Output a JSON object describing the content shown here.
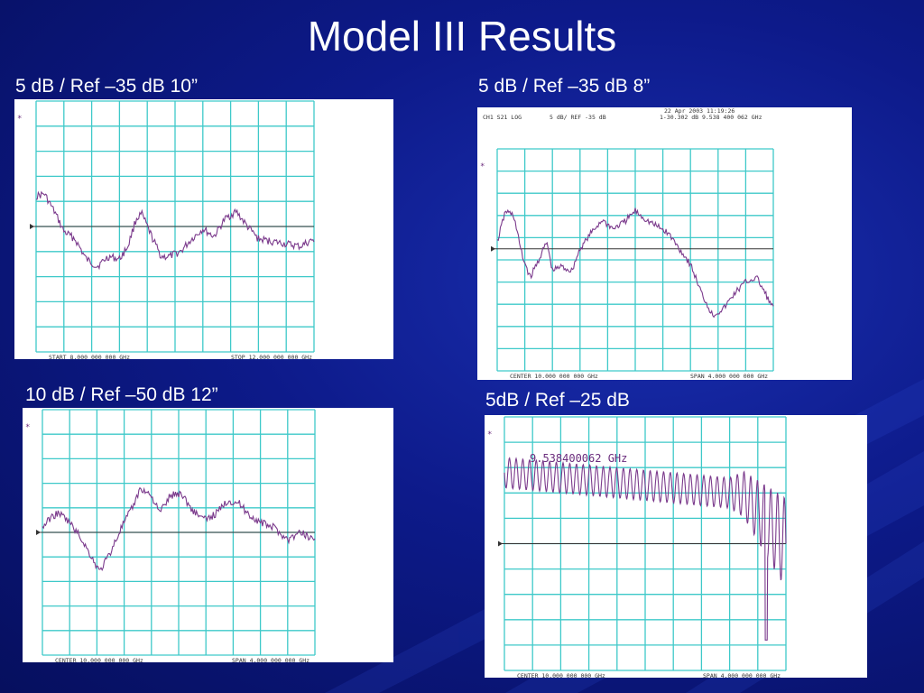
{
  "slide": {
    "title": "Model III Results"
  },
  "panels": [
    {
      "caption": "5 dB / Ref –35 dB 10”",
      "footer_left": "START 8.000 000 000 GHz",
      "footer_right": "STOP 12.000 000 000 GHz",
      "header_left": "",
      "header_mid": "",
      "header_right": "",
      "header_date": "",
      "marker_readout": ""
    },
    {
      "caption": "5 dB / Ref –35 dB 8”",
      "footer_left": "CENTER 10.000 000 000 GHz",
      "footer_right": "SPAN 4.000 000 000 GHz",
      "header_left": "CH1  S21   LOG",
      "header_mid": "5 dB/ REF -35 dB",
      "header_right": "1-30.302 dB   9.538 400 062 GHz",
      "header_date": "22 Apr 2003   11:19:26",
      "marker_readout": ""
    },
    {
      "caption": "10 dB / Ref –50 dB 12”",
      "footer_left": "CENTER 10.000 000 000 GHz",
      "footer_right": "SPAN 4.000 000 000 GHz",
      "header_left": "",
      "header_mid": "",
      "header_right": "",
      "header_date": "",
      "marker_readout": ""
    },
    {
      "caption": "5dB / Ref –25 dB",
      "footer_left": "CENTER 10.000 000 000 GHz",
      "footer_right": "SPAN 4.000 000 000 GHz",
      "header_left": "",
      "header_mid": "",
      "header_right": "",
      "header_date": "",
      "marker_readout": "9.538400062 GHz"
    }
  ],
  "colors": {
    "grid": "#3ec9c9",
    "trace": "#7b3a8c",
    "reference": "#333333",
    "annotation": "#6a2b7c"
  }
}
